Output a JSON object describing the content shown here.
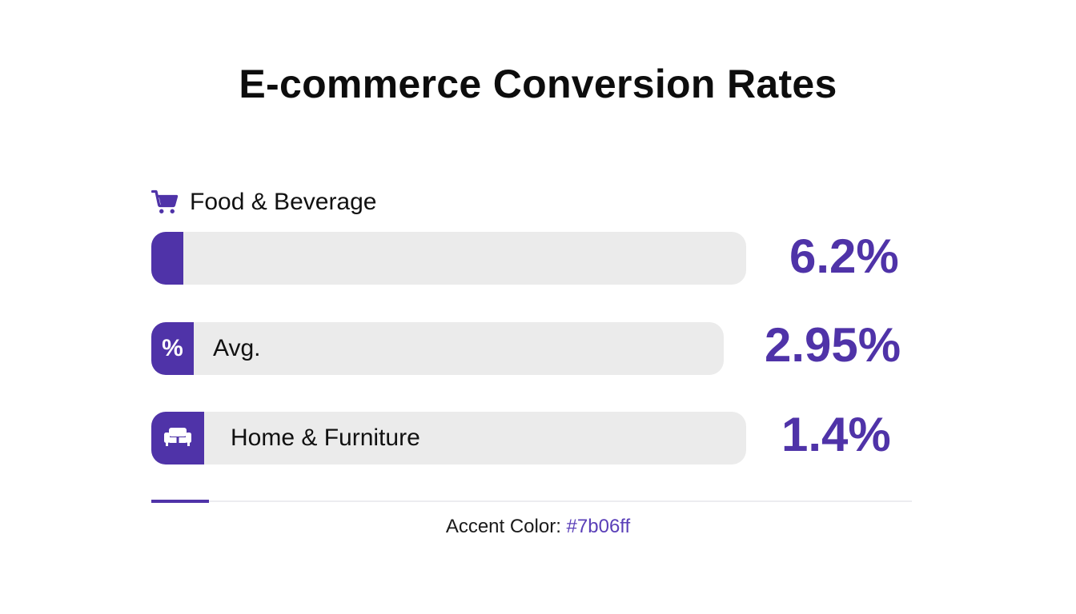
{
  "title": "E-commerce Conversion Rates",
  "chart_data": {
    "type": "bar",
    "orientation": "horizontal",
    "categories": [
      "Food & Beverage",
      "Avg.",
      "Home & Furniture"
    ],
    "values": [
      6.2,
      2.95,
      1.4
    ],
    "value_labels": [
      "6.2%",
      "2.95%",
      "1.4%"
    ],
    "unit": "%",
    "icons": [
      "shopping-cart-icon",
      "percent-icon",
      "sofa-icon"
    ],
    "title": "E-commerce Conversion Rates"
  },
  "footer": {
    "label": "Accent Color:",
    "value": "#7b06ff"
  },
  "colors": {
    "bar_fill": "#4f33a8",
    "track": "#ebebeb",
    "accent_text": "#5a3fb8"
  }
}
